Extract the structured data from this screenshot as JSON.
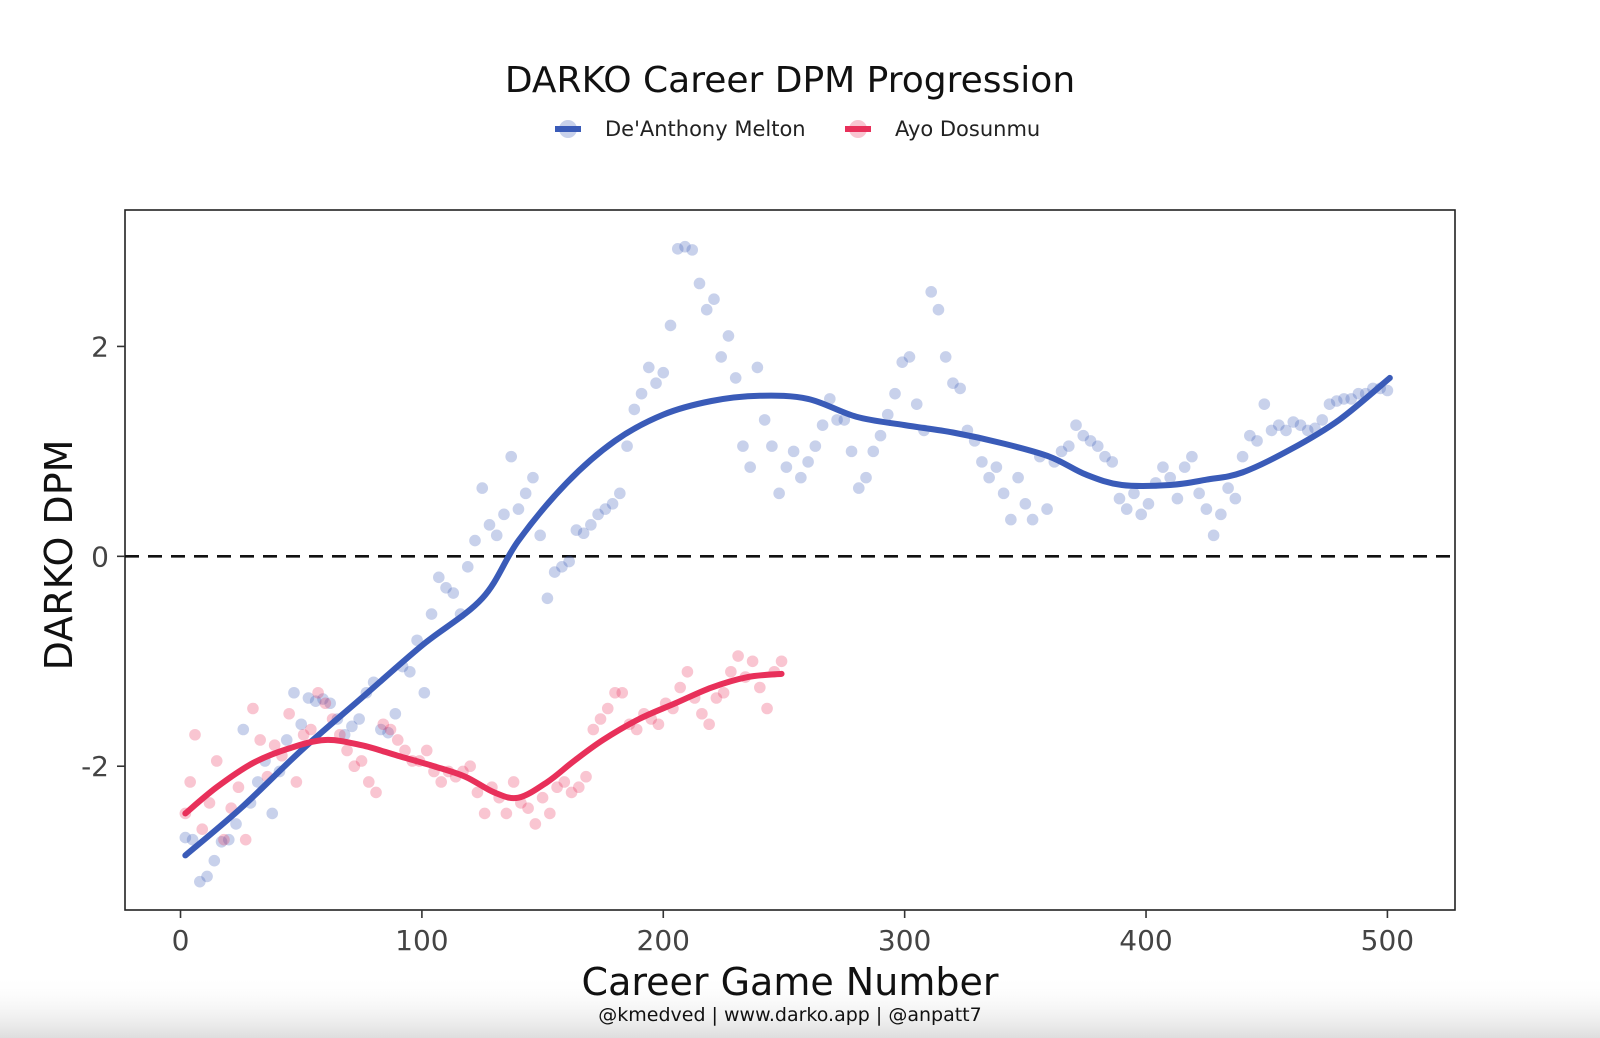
{
  "chart_data": {
    "type": "scatter",
    "title": "DARKO Career DPM Progression",
    "xlabel": "Career Game Number",
    "ylabel": "DARKO DPM",
    "caption": "@kmedved | www.darko.app | @anpatt7",
    "xlim": [
      -23,
      528
    ],
    "ylim": [
      -3.37,
      3.3
    ],
    "xticks": [
      0,
      100,
      200,
      300,
      400,
      500
    ],
    "yticks": [
      -2,
      0,
      2
    ],
    "reference_line": {
      "y": 0,
      "style": "dashed"
    },
    "legend_position": "top",
    "series": [
      {
        "name": "De'Anthony Melton",
        "color": "#3a5bb8",
        "smooth": [
          [
            2,
            -2.85
          ],
          [
            25,
            -2.4
          ],
          [
            50,
            -1.85
          ],
          [
            75,
            -1.35
          ],
          [
            100,
            -0.85
          ],
          [
            125,
            -0.4
          ],
          [
            140,
            0.15
          ],
          [
            160,
            0.7
          ],
          [
            180,
            1.1
          ],
          [
            200,
            1.35
          ],
          [
            220,
            1.48
          ],
          [
            240,
            1.53
          ],
          [
            260,
            1.5
          ],
          [
            280,
            1.33
          ],
          [
            300,
            1.25
          ],
          [
            320,
            1.18
          ],
          [
            340,
            1.08
          ],
          [
            360,
            0.95
          ],
          [
            375,
            0.78
          ],
          [
            390,
            0.68
          ],
          [
            410,
            0.68
          ],
          [
            425,
            0.73
          ],
          [
            440,
            0.8
          ],
          [
            460,
            1.02
          ],
          [
            480,
            1.3
          ],
          [
            501,
            1.7
          ]
        ],
        "points": [
          [
            2,
            -2.68
          ],
          [
            5,
            -2.7
          ],
          [
            8,
            -3.1
          ],
          [
            11,
            -3.05
          ],
          [
            14,
            -2.9
          ],
          [
            17,
            -2.72
          ],
          [
            20,
            -2.7
          ],
          [
            23,
            -2.55
          ],
          [
            26,
            -1.65
          ],
          [
            29,
            -2.35
          ],
          [
            32,
            -2.15
          ],
          [
            35,
            -1.95
          ],
          [
            38,
            -2.45
          ],
          [
            41,
            -2.05
          ],
          [
            44,
            -1.75
          ],
          [
            47,
            -1.3
          ],
          [
            50,
            -1.6
          ],
          [
            53,
            -1.35
          ],
          [
            56,
            -1.38
          ],
          [
            59,
            -1.36
          ],
          [
            62,
            -1.4
          ],
          [
            65,
            -1.55
          ],
          [
            68,
            -1.7
          ],
          [
            71,
            -1.62
          ],
          [
            74,
            -1.55
          ],
          [
            77,
            -1.3
          ],
          [
            80,
            -1.2
          ],
          [
            83,
            -1.65
          ],
          [
            86,
            -1.68
          ],
          [
            89,
            -1.5
          ],
          [
            92,
            -1.05
          ],
          [
            95,
            -1.1
          ],
          [
            98,
            -0.8
          ],
          [
            101,
            -1.3
          ],
          [
            104,
            -0.55
          ],
          [
            107,
            -0.2
          ],
          [
            110,
            -0.3
          ],
          [
            113,
            -0.35
          ],
          [
            116,
            -0.55
          ],
          [
            119,
            -0.1
          ],
          [
            122,
            0.15
          ],
          [
            125,
            0.65
          ],
          [
            128,
            0.3
          ],
          [
            131,
            0.2
          ],
          [
            134,
            0.4
          ],
          [
            137,
            0.95
          ],
          [
            140,
            0.45
          ],
          [
            143,
            0.6
          ],
          [
            146,
            0.75
          ],
          [
            149,
            0.2
          ],
          [
            152,
            -0.4
          ],
          [
            155,
            -0.15
          ],
          [
            158,
            -0.1
          ],
          [
            161,
            -0.05
          ],
          [
            164,
            0.25
          ],
          [
            167,
            0.22
          ],
          [
            170,
            0.3
          ],
          [
            173,
            0.4
          ],
          [
            176,
            0.45
          ],
          [
            179,
            0.5
          ],
          [
            182,
            0.6
          ],
          [
            185,
            1.05
          ],
          [
            188,
            1.4
          ],
          [
            191,
            1.55
          ],
          [
            194,
            1.8
          ],
          [
            197,
            1.65
          ],
          [
            200,
            1.75
          ],
          [
            203,
            2.2
          ],
          [
            206,
            2.93
          ],
          [
            209,
            2.95
          ],
          [
            212,
            2.92
          ],
          [
            215,
            2.6
          ],
          [
            218,
            2.35
          ],
          [
            221,
            2.45
          ],
          [
            224,
            1.9
          ],
          [
            227,
            2.1
          ],
          [
            230,
            1.7
          ],
          [
            233,
            1.05
          ],
          [
            236,
            0.85
          ],
          [
            239,
            1.8
          ],
          [
            242,
            1.3
          ],
          [
            245,
            1.05
          ],
          [
            248,
            0.6
          ],
          [
            251,
            0.85
          ],
          [
            254,
            1.0
          ],
          [
            257,
            0.75
          ],
          [
            260,
            0.9
          ],
          [
            263,
            1.05
          ],
          [
            266,
            1.25
          ],
          [
            269,
            1.5
          ],
          [
            272,
            1.3
          ],
          [
            275,
            1.3
          ],
          [
            278,
            1.0
          ],
          [
            281,
            0.65
          ],
          [
            284,
            0.75
          ],
          [
            287,
            1.0
          ],
          [
            290,
            1.15
          ],
          [
            293,
            1.35
          ],
          [
            296,
            1.55
          ],
          [
            299,
            1.85
          ],
          [
            302,
            1.9
          ],
          [
            305,
            1.45
          ],
          [
            308,
            1.2
          ],
          [
            311,
            2.52
          ],
          [
            314,
            2.35
          ],
          [
            317,
            1.9
          ],
          [
            320,
            1.65
          ],
          [
            323,
            1.6
          ],
          [
            326,
            1.2
          ],
          [
            329,
            1.1
          ],
          [
            332,
            0.9
          ],
          [
            335,
            0.75
          ],
          [
            338,
            0.85
          ],
          [
            341,
            0.6
          ],
          [
            344,
            0.35
          ],
          [
            347,
            0.75
          ],
          [
            350,
            0.5
          ],
          [
            353,
            0.35
          ],
          [
            356,
            0.95
          ],
          [
            359,
            0.45
          ],
          [
            362,
            0.9
          ],
          [
            365,
            1.0
          ],
          [
            368,
            1.05
          ],
          [
            371,
            1.25
          ],
          [
            374,
            1.15
          ],
          [
            377,
            1.1
          ],
          [
            380,
            1.05
          ],
          [
            383,
            0.95
          ],
          [
            386,
            0.9
          ],
          [
            389,
            0.55
          ],
          [
            392,
            0.45
          ],
          [
            395,
            0.6
          ],
          [
            398,
            0.4
          ],
          [
            401,
            0.5
          ],
          [
            404,
            0.7
          ],
          [
            407,
            0.85
          ],
          [
            410,
            0.75
          ],
          [
            413,
            0.55
          ],
          [
            416,
            0.85
          ],
          [
            419,
            0.95
          ],
          [
            422,
            0.6
          ],
          [
            425,
            0.45
          ],
          [
            428,
            0.2
          ],
          [
            431,
            0.4
          ],
          [
            434,
            0.65
          ],
          [
            437,
            0.55
          ],
          [
            440,
            0.95
          ],
          [
            443,
            1.15
          ],
          [
            446,
            1.1
          ],
          [
            449,
            1.45
          ],
          [
            452,
            1.2
          ],
          [
            455,
            1.25
          ],
          [
            458,
            1.2
          ],
          [
            461,
            1.28
          ],
          [
            464,
            1.25
          ],
          [
            467,
            1.2
          ],
          [
            470,
            1.22
          ],
          [
            473,
            1.3
          ],
          [
            476,
            1.45
          ],
          [
            479,
            1.48
          ],
          [
            482,
            1.5
          ],
          [
            485,
            1.5
          ],
          [
            488,
            1.55
          ],
          [
            491,
            1.55
          ],
          [
            494,
            1.6
          ],
          [
            497,
            1.6
          ],
          [
            500,
            1.58
          ]
        ]
      },
      {
        "name": "Ayo Dosunmu",
        "color": "#e8305a",
        "smooth": [
          [
            2,
            -2.45
          ],
          [
            15,
            -2.2
          ],
          [
            30,
            -1.97
          ],
          [
            45,
            -1.83
          ],
          [
            60,
            -1.75
          ],
          [
            75,
            -1.8
          ],
          [
            90,
            -1.9
          ],
          [
            105,
            -2.0
          ],
          [
            118,
            -2.1
          ],
          [
            130,
            -2.25
          ],
          [
            140,
            -2.3
          ],
          [
            152,
            -2.15
          ],
          [
            163,
            -1.95
          ],
          [
            175,
            -1.75
          ],
          [
            190,
            -1.55
          ],
          [
            205,
            -1.4
          ],
          [
            220,
            -1.25
          ],
          [
            235,
            -1.15
          ],
          [
            249,
            -1.12
          ]
        ],
        "points": [
          [
            2,
            -2.45
          ],
          [
            4,
            -2.15
          ],
          [
            6,
            -1.7
          ],
          [
            9,
            -2.6
          ],
          [
            12,
            -2.35
          ],
          [
            15,
            -1.95
          ],
          [
            18,
            -2.7
          ],
          [
            21,
            -2.4
          ],
          [
            24,
            -2.2
          ],
          [
            27,
            -2.7
          ],
          [
            30,
            -1.45
          ],
          [
            33,
            -1.75
          ],
          [
            36,
            -2.1
          ],
          [
            39,
            -1.8
          ],
          [
            42,
            -1.9
          ],
          [
            45,
            -1.5
          ],
          [
            48,
            -2.15
          ],
          [
            51,
            -1.7
          ],
          [
            54,
            -1.65
          ],
          [
            57,
            -1.3
          ],
          [
            60,
            -1.4
          ],
          [
            63,
            -1.55
          ],
          [
            66,
            -1.7
          ],
          [
            69,
            -1.85
          ],
          [
            72,
            -2.0
          ],
          [
            75,
            -1.95
          ],
          [
            78,
            -2.15
          ],
          [
            81,
            -2.25
          ],
          [
            84,
            -1.6
          ],
          [
            87,
            -1.65
          ],
          [
            90,
            -1.75
          ],
          [
            93,
            -1.85
          ],
          [
            96,
            -1.95
          ],
          [
            99,
            -1.95
          ],
          [
            102,
            -1.85
          ],
          [
            105,
            -2.05
          ],
          [
            108,
            -2.15
          ],
          [
            111,
            -2.05
          ],
          [
            114,
            -2.1
          ],
          [
            117,
            -2.05
          ],
          [
            120,
            -2.0
          ],
          [
            123,
            -2.25
          ],
          [
            126,
            -2.45
          ],
          [
            129,
            -2.2
          ],
          [
            132,
            -2.3
          ],
          [
            135,
            -2.45
          ],
          [
            138,
            -2.15
          ],
          [
            141,
            -2.35
          ],
          [
            144,
            -2.4
          ],
          [
            147,
            -2.55
          ],
          [
            150,
            -2.3
          ],
          [
            153,
            -2.45
          ],
          [
            156,
            -2.2
          ],
          [
            159,
            -2.15
          ],
          [
            162,
            -2.25
          ],
          [
            165,
            -2.2
          ],
          [
            168,
            -2.1
          ],
          [
            171,
            -1.65
          ],
          [
            174,
            -1.55
          ],
          [
            177,
            -1.45
          ],
          [
            180,
            -1.3
          ],
          [
            183,
            -1.3
          ],
          [
            186,
            -1.6
          ],
          [
            189,
            -1.65
          ],
          [
            192,
            -1.5
          ],
          [
            195,
            -1.55
          ],
          [
            198,
            -1.6
          ],
          [
            201,
            -1.4
          ],
          [
            204,
            -1.45
          ],
          [
            207,
            -1.25
          ],
          [
            210,
            -1.1
          ],
          [
            213,
            -1.35
          ],
          [
            216,
            -1.5
          ],
          [
            219,
            -1.6
          ],
          [
            222,
            -1.35
          ],
          [
            225,
            -1.3
          ],
          [
            228,
            -1.1
          ],
          [
            231,
            -0.95
          ],
          [
            234,
            -1.15
          ],
          [
            237,
            -1.0
          ],
          [
            240,
            -1.25
          ],
          [
            243,
            -1.45
          ],
          [
            246,
            -1.1
          ],
          [
            249,
            -1.0
          ]
        ]
      }
    ]
  }
}
